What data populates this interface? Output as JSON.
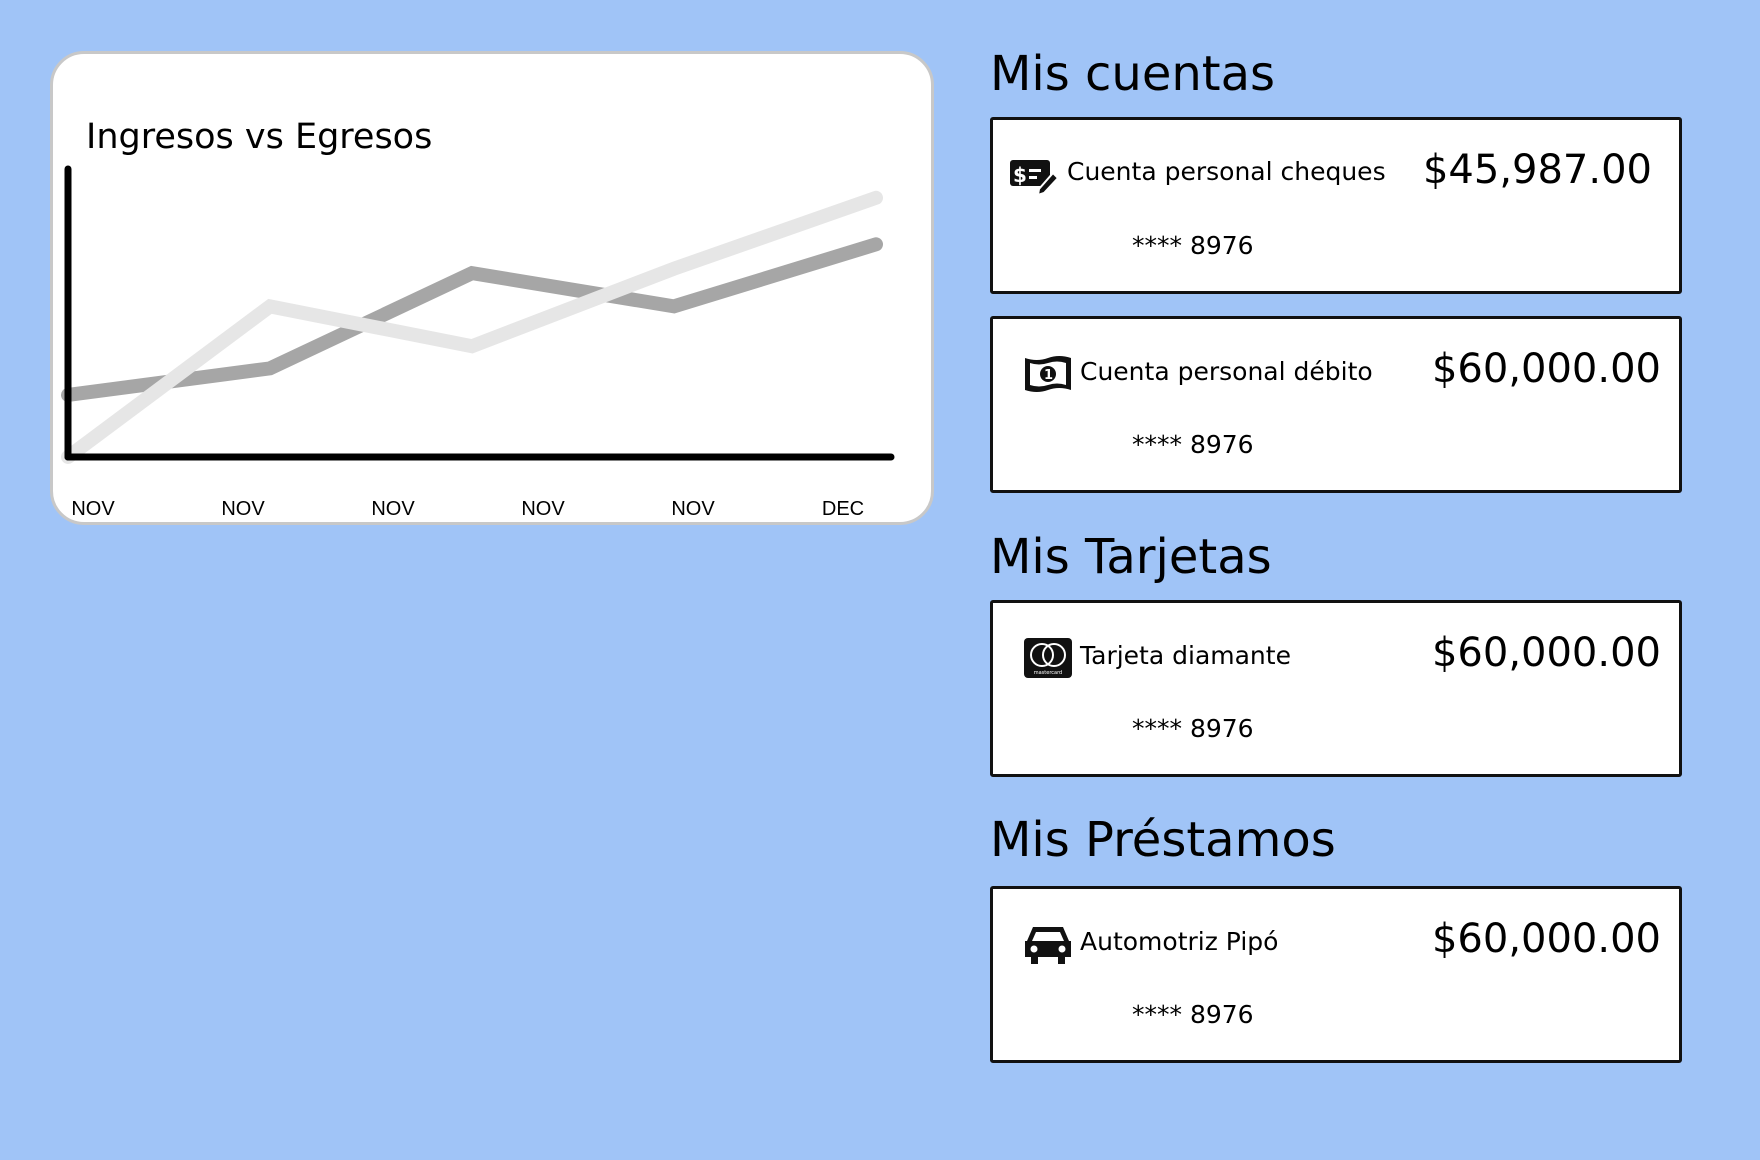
{
  "chart_data": {
    "type": "line",
    "title": "Ingresos vs Egresos",
    "categories": [
      "NOV",
      "NOV",
      "NOV",
      "NOV",
      "DEC"
    ],
    "x_tick_labels": [
      "NOV",
      "NOV",
      "NOV",
      "NOV",
      "NOV",
      "DEC"
    ],
    "series": [
      {
        "color": "#e6e6e6",
        "values": [
          0,
          68,
          50,
          85,
          117
        ]
      },
      {
        "color": "#a6a6a6",
        "values": [
          28,
          40,
          83,
          68,
          96
        ]
      }
    ],
    "ylim": [
      0,
      130
    ],
    "grid": false
  },
  "accounts": {
    "title": "Mis cuentas",
    "items": [
      {
        "icon": "check-icon",
        "name": "Cuenta personal cheques",
        "amount": "$45,987.00",
        "mask": "**** 8976"
      },
      {
        "icon": "banknote-icon",
        "name": "Cuenta personal débito",
        "amount": "$60,000.00",
        "mask": "**** 8976"
      }
    ]
  },
  "cards": {
    "title": "Mis Tarjetas",
    "items": [
      {
        "icon": "mastercard-icon",
        "name": "Tarjeta diamante",
        "amount": "$60,000.00",
        "mask": "**** 8976",
        "brand_text": "mastercard"
      }
    ]
  },
  "loans": {
    "title": "Mis Préstamos",
    "items": [
      {
        "icon": "car-icon",
        "name": "Automotriz Pipó",
        "amount": "$60,000.00",
        "mask": "**** 8976"
      }
    ]
  }
}
